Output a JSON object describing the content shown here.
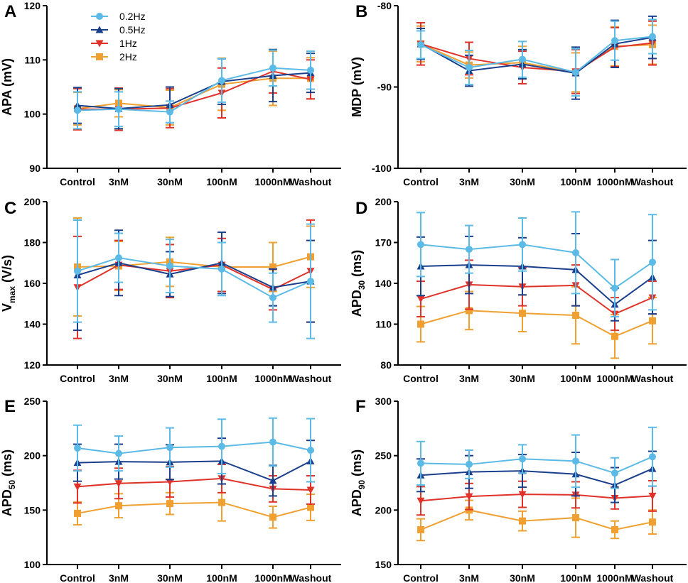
{
  "colors": {
    "s02": "#5bbbe6",
    "s05": "#1a3f8c",
    "s1": "#e03228",
    "s2": "#f0a030"
  },
  "legend": [
    {
      "name": "0.2Hz",
      "marker": "circle",
      "color": "#5bbbe6"
    },
    {
      "name": "0.5Hz",
      "marker": "triangle-up",
      "color": "#1a3f8c"
    },
    {
      "name": "1Hz",
      "marker": "triangle-down",
      "color": "#e03228"
    },
    {
      "name": "2Hz",
      "marker": "square",
      "color": "#f0a030"
    }
  ],
  "chart_data": [
    {
      "panel": "A",
      "type": "line",
      "ylabel_text": "APA (mV)",
      "categories": [
        "Control",
        "3nM",
        "30nM",
        "100nM",
        "1000nM",
        "Washout"
      ],
      "ylim": [
        90,
        120
      ],
      "yticks": [
        90,
        100,
        110,
        120
      ],
      "series": [
        {
          "name": "0.2Hz",
          "values": [
            100.7,
            100.9,
            100.4,
            106.2,
            108.5,
            108.1
          ],
          "err": [
            3.4,
            3.2,
            2.0,
            4.0,
            3.3,
            3.5
          ]
        },
        {
          "name": "0.5Hz",
          "values": [
            101.6,
            101.0,
            101.7,
            106.0,
            107.1,
            107.6
          ],
          "err": [
            3.3,
            3.7,
            3.3,
            4.2,
            4.8,
            3.6
          ]
        },
        {
          "name": "1Hz",
          "values": [
            100.9,
            100.9,
            101.1,
            103.9,
            107.9,
            106.4
          ],
          "err": [
            3.8,
            3.9,
            3.6,
            4.6,
            4.0,
            3.6
          ]
        },
        {
          "name": "2Hz",
          "values": [
            101.0,
            102.0,
            101.2,
            105.5,
            106.6,
            106.6
          ],
          "err": [
            3.0,
            2.5,
            3.2,
            4.8,
            5.0,
            3.8
          ]
        }
      ]
    },
    {
      "panel": "B",
      "type": "line",
      "ylabel_text": "MDP (mV)",
      "categories": [
        "Control",
        "3nM",
        "30nM",
        "100nM",
        "1000nM",
        "Washout"
      ],
      "ylim": [
        -100,
        -80
      ],
      "yticks": [
        -100,
        -90,
        -80
      ],
      "series": [
        {
          "name": "0.2Hz",
          "values": [
            -84.8,
            -87.6,
            -86.6,
            -88.2,
            -84.3,
            -83.8
          ],
          "err": [
            1.7,
            2.1,
            2.2,
            2.9,
            2.4,
            2.1
          ]
        },
        {
          "name": "0.5Hz",
          "values": [
            -84.7,
            -88.0,
            -87.2,
            -88.3,
            -84.7,
            -83.9
          ],
          "err": [
            1.9,
            1.9,
            1.8,
            3.2,
            2.9,
            2.6
          ]
        },
        {
          "name": "1Hz",
          "values": [
            -84.7,
            -86.5,
            -87.6,
            -88.1,
            -85.1,
            -84.6
          ],
          "err": [
            2.6,
            2.0,
            2.0,
            2.7,
            2.4,
            2.7
          ]
        },
        {
          "name": "2Hz",
          "values": [
            -84.7,
            -87.3,
            -87.0,
            -88.2,
            -85.0,
            -84.8
          ],
          "err": [
            2.2,
            1.6,
            2.0,
            2.4,
            2.4,
            2.4
          ]
        }
      ]
    },
    {
      "panel": "C",
      "type": "line",
      "ylabel_text": "V",
      "ylabel_sub": "max",
      "ylabel_rest": " (V/s)",
      "categories": [
        "Control",
        "3nM",
        "30nM",
        "100nM",
        "1000nM",
        "Washout"
      ],
      "ylim": [
        120,
        200
      ],
      "yticks": [
        120,
        140,
        160,
        180,
        200
      ],
      "series": [
        {
          "name": "0.2Hz",
          "values": [
            166,
            172.5,
            168.5,
            167,
            153,
            161
          ],
          "err": [
            25,
            12,
            13,
            13,
            12,
            28
          ]
        },
        {
          "name": "0.5Hz",
          "values": [
            164,
            170,
            164.5,
            170,
            158,
            161
          ],
          "err": [
            27,
            16,
            11,
            15,
            9,
            20
          ]
        },
        {
          "name": "1Hz",
          "values": [
            158,
            169,
            166,
            169,
            157,
            166
          ],
          "err": [
            25,
            12,
            13,
            13,
            10,
            25
          ]
        },
        {
          "name": "2Hz",
          "values": [
            168,
            168.5,
            170.5,
            168,
            168,
            173
          ],
          "err": [
            24,
            12,
            12,
            12,
            12,
            15
          ]
        }
      ]
    },
    {
      "panel": "D",
      "type": "line",
      "ylabel_text": "APD",
      "ylabel_sub": "30",
      "ylabel_rest": " (ms)",
      "categories": [
        "Control",
        "3nM",
        "30nM",
        "100nM",
        "1000nM",
        "Washout"
      ],
      "ylim": [
        80,
        200
      ],
      "yticks": [
        80,
        110,
        140,
        170,
        200
      ],
      "series": [
        {
          "name": "0.2Hz",
          "values": [
            168.5,
            165,
            168.5,
            162.5,
            136.5,
            155.5
          ],
          "err": [
            23.5,
            17.5,
            19.5,
            30,
            21,
            35
          ]
        },
        {
          "name": "0.5Hz",
          "values": [
            152.5,
            153.5,
            152.5,
            150,
            124.5,
            144.5
          ],
          "err": [
            21.5,
            21,
            21,
            26.5,
            12,
            27
          ]
        },
        {
          "name": "1Hz",
          "values": [
            128.5,
            139,
            137.5,
            138.5,
            117.5,
            129.5
          ],
          "err": [
            13,
            18,
            14,
            15,
            12,
            12
          ]
        },
        {
          "name": "2Hz",
          "values": [
            110,
            120,
            118,
            116.5,
            101,
            112.5
          ],
          "err": [
            13,
            14,
            13.5,
            21,
            16,
            17
          ]
        }
      ]
    },
    {
      "panel": "E",
      "type": "line",
      "ylabel_text": "APD",
      "ylabel_sub": "50",
      "ylabel_rest": " (ms)",
      "categories": [
        "Control",
        "3nM",
        "30nM",
        "100nM",
        "1000nM",
        "Washout"
      ],
      "ylim": [
        100,
        250
      ],
      "yticks": [
        100,
        150,
        200,
        250
      ],
      "series": [
        {
          "name": "0.2Hz",
          "values": [
            207,
            202,
            207.5,
            208.5,
            212.5,
            205
          ],
          "err": [
            21,
            16,
            18,
            25,
            22,
            29
          ]
        },
        {
          "name": "0.5Hz",
          "values": [
            193.5,
            194.5,
            194,
            195,
            177,
            195
          ],
          "err": [
            17,
            16,
            16,
            21,
            14,
            19
          ]
        },
        {
          "name": "1Hz",
          "values": [
            171.5,
            174.5,
            176,
            179,
            169.5,
            168.5
          ],
          "err": [
            15,
            14,
            14,
            13,
            12,
            13
          ]
        },
        {
          "name": "2Hz",
          "values": [
            147,
            154,
            156,
            157,
            143.5,
            152.5
          ],
          "err": [
            10.5,
            11,
            10,
            17,
            10,
            12
          ]
        }
      ]
    },
    {
      "panel": "F",
      "type": "line",
      "ylabel_text": "APD",
      "ylabel_sub": "90",
      "ylabel_rest": " (ms)",
      "categories": [
        "Control",
        "3nM",
        "30nM",
        "100nM",
        "1000nM",
        "Washout"
      ],
      "ylim": [
        150,
        300
      ],
      "yticks": [
        150,
        200,
        250,
        300
      ],
      "series": [
        {
          "name": "0.2Hz",
          "values": [
            243,
            242,
            247,
            245,
            234,
            249
          ],
          "err": [
            20,
            13,
            13,
            24,
            14,
            27
          ]
        },
        {
          "name": "0.5Hz",
          "values": [
            232,
            235,
            236,
            233,
            223,
            238
          ],
          "err": [
            15,
            15,
            15,
            20,
            16,
            16
          ]
        },
        {
          "name": "1Hz",
          "values": [
            208.5,
            212.5,
            214.5,
            214,
            211,
            213
          ],
          "err": [
            13,
            12,
            12,
            12,
            10,
            14
          ]
        },
        {
          "name": "2Hz",
          "values": [
            182,
            200,
            190,
            193,
            182,
            189
          ],
          "err": [
            10,
            9,
            9,
            18,
            8,
            11
          ]
        }
      ]
    }
  ]
}
